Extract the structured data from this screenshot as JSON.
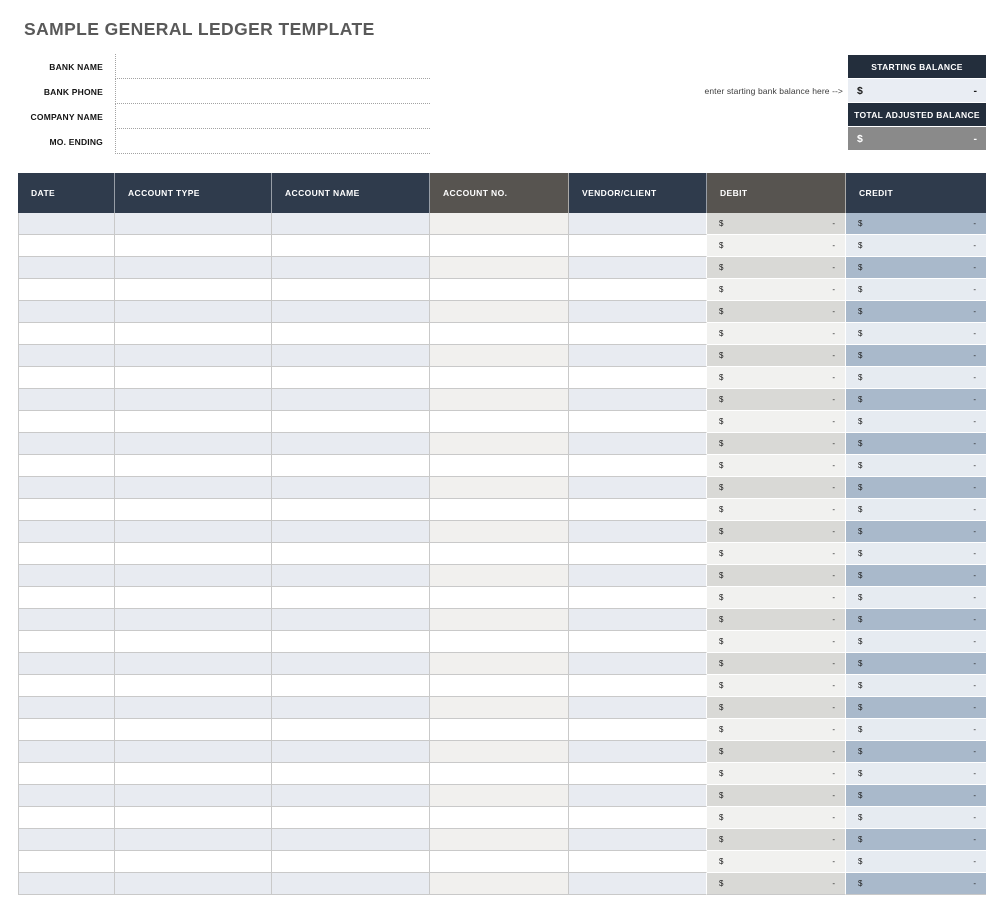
{
  "title": "SAMPLE GENERAL LEDGER TEMPLATE",
  "form": {
    "fields": [
      {
        "label": "BANK NAME",
        "value": ""
      },
      {
        "label": "BANK PHONE",
        "value": ""
      },
      {
        "label": "COMPANY NAME",
        "value": ""
      },
      {
        "label": "MO. ENDING",
        "value": ""
      }
    ]
  },
  "balance_panel": {
    "hint": "enter starting bank balance here -->",
    "starting": {
      "header": "STARTING BALANCE",
      "currency": "$",
      "amount": "-"
    },
    "total": {
      "header": "TOTAL ADJUSTED BALANCE",
      "currency": "$",
      "amount": "-"
    }
  },
  "table": {
    "columns": [
      {
        "key": "date",
        "label": "DATE",
        "variant": "navy",
        "money": false
      },
      {
        "key": "account_type",
        "label": "ACCOUNT TYPE",
        "variant": "navy",
        "money": false
      },
      {
        "key": "account_name",
        "label": "ACCOUNT NAME",
        "variant": "navy",
        "money": false
      },
      {
        "key": "account_no",
        "label": "ACCOUNT NO.",
        "variant": "gray",
        "money": false
      },
      {
        "key": "vendor_client",
        "label": "VENDOR/CLIENT",
        "variant": "navy",
        "money": false
      },
      {
        "key": "debit",
        "label": "DEBIT",
        "variant": "gray",
        "money": true
      },
      {
        "key": "credit",
        "label": "CREDIT",
        "variant": "navy",
        "money": true
      }
    ],
    "row_count": 31,
    "money_cell": {
      "currency": "$",
      "amount": "-"
    }
  },
  "colors": {
    "title_color": "#595959",
    "header_navy": "#2f3b4c",
    "header_gray": "#575450",
    "panel_dark": "#232e3c",
    "panel_light_cell": "#e9edf3",
    "panel_gray_cell": "#8a8a8a",
    "row_blue": "#e8ebf1",
    "row_warm": "#f1f0ee",
    "debit_odd": "#d9d9d6",
    "debit_even": "#f1f1ef",
    "credit_odd": "#a9b9cb",
    "credit_even": "#e6ebf1",
    "grid": "#c9c9c9"
  }
}
